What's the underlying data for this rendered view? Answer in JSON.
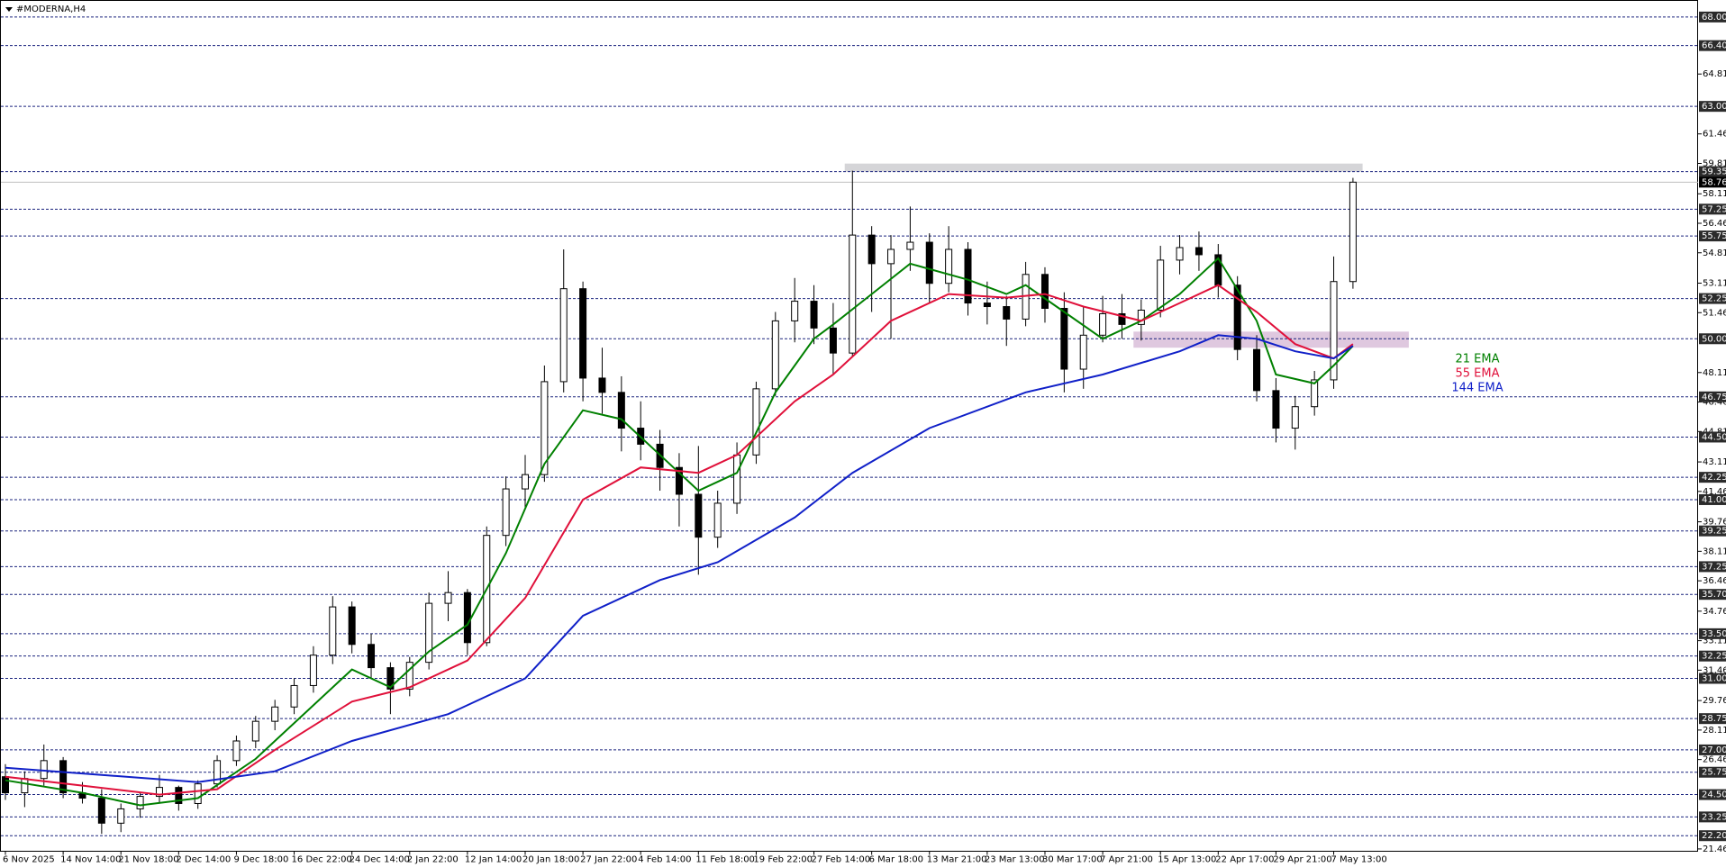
{
  "chart_data": {
    "type": "candlestick",
    "title": "#MODERNA,H4",
    "categories": [
      "6 Nov 2025",
      null,
      null,
      "14 Nov 14:00",
      null,
      null,
      "21 Nov 18:00",
      null,
      null,
      "2 Dec 14:00",
      null,
      null,
      "9 Dec 18:00",
      null,
      null,
      "16 Dec 22:00",
      null,
      null,
      "24 Dec 14:00",
      null,
      null,
      "2 Jan 22:00",
      null,
      null,
      "12 Jan 14:00",
      null,
      null,
      "20 Jan 18:00",
      null,
      null,
      "27 Jan 22:00",
      null,
      null,
      "4 Feb 14:00",
      null,
      null,
      "11 Feb 18:00",
      null,
      null,
      "19 Feb 22:00",
      null,
      null,
      "27 Feb 14:00",
      null,
      null,
      "6 Mar 18:00",
      null,
      null,
      "13 Mar 21:00",
      null,
      null,
      "23 Mar 13:00",
      null,
      null,
      "30 Mar 17:00",
      null,
      null,
      "7 Apr 21:00",
      null,
      null,
      "15 Apr 13:00",
      null,
      null,
      "22 Apr 17:00",
      null,
      null,
      "29 Apr 21:00",
      null,
      null,
      "7 May 13:00",
      null
    ],
    "open": [
      25.5,
      24.6,
      25.4,
      26.4,
      24.6,
      24.3,
      22.9,
      23.7,
      24.4,
      24.9,
      24.0,
      25.1,
      26.4,
      27.5,
      28.6,
      29.4,
      30.6,
      32.3,
      35.0,
      32.9,
      31.6,
      30.4,
      31.9,
      35.2,
      35.8,
      33.0,
      39.0,
      41.6,
      42.4,
      47.6,
      52.8,
      47.8,
      47.0,
      45.0,
      44.1,
      42.8,
      41.3,
      38.9,
      40.8,
      43.5,
      47.2,
      51.0,
      52.1,
      50.6,
      49.2,
      55.8,
      54.2,
      55.0,
      55.4,
      53.1,
      55.0,
      52.0,
      51.8,
      51.1,
      53.6,
      51.7,
      48.3,
      50.2,
      51.4,
      50.8,
      51.6,
      54.4,
      55.1,
      54.7,
      53.0,
      49.4,
      47.1,
      45.0,
      46.2,
      47.7,
      53.2
    ],
    "high": [
      26.2,
      25.8,
      27.3,
      26.6,
      25.2,
      24.8,
      24.0,
      24.6,
      25.6,
      25.0,
      25.3,
      26.7,
      27.8,
      28.9,
      29.8,
      31.0,
      32.8,
      35.6,
      35.3,
      33.5,
      31.9,
      32.2,
      35.8,
      37.0,
      36.0,
      39.5,
      42.3,
      43.5,
      48.5,
      55.0,
      53.2,
      49.5,
      47.9,
      46.5,
      44.9,
      43.6,
      44.0,
      41.5,
      44.2,
      47.6,
      51.5,
      53.4,
      53.0,
      52.0,
      59.4,
      56.3,
      55.8,
      57.4,
      55.9,
      56.3,
      55.4,
      53.2,
      52.4,
      54.3,
      54.0,
      52.6,
      51.8,
      52.4,
      52.5,
      52.2,
      55.2,
      55.8,
      56.0,
      55.3,
      53.5,
      50.2,
      47.8,
      46.8,
      48.2,
      54.6,
      59.0
    ],
    "low": [
      24.2,
      23.8,
      25.0,
      24.3,
      24.0,
      22.3,
      22.4,
      23.2,
      24.0,
      23.6,
      23.7,
      24.9,
      26.1,
      27.1,
      28.1,
      29.0,
      30.2,
      31.8,
      32.4,
      31.0,
      29.0,
      30.0,
      31.5,
      34.2,
      32.3,
      32.8,
      38.4,
      40.5,
      42.0,
      47.0,
      46.5,
      45.8,
      43.7,
      43.2,
      41.5,
      39.5,
      36.8,
      38.3,
      40.2,
      43.0,
      46.8,
      49.8,
      49.7,
      48.0,
      49.0,
      51.5,
      50.0,
      53.8,
      52.0,
      52.6,
      51.3,
      50.8,
      49.6,
      50.7,
      50.9,
      47.0,
      47.2,
      49.8,
      50.0,
      49.9,
      51.2,
      53.6,
      53.8,
      52.3,
      48.8,
      46.5,
      44.2,
      43.8,
      45.7,
      47.2,
      52.8
    ],
    "close": [
      24.6,
      25.4,
      26.4,
      24.6,
      24.3,
      22.9,
      23.7,
      24.4,
      24.9,
      24.0,
      25.1,
      26.4,
      27.5,
      28.6,
      29.4,
      30.6,
      32.3,
      35.0,
      32.9,
      31.6,
      30.4,
      31.9,
      35.2,
      35.8,
      33.0,
      39.0,
      41.6,
      42.4,
      47.6,
      52.8,
      47.8,
      47.0,
      45.0,
      44.1,
      42.8,
      41.3,
      38.9,
      40.8,
      43.5,
      47.2,
      51.0,
      52.1,
      50.6,
      49.2,
      55.8,
      54.2,
      55.0,
      55.4,
      53.1,
      55.0,
      52.0,
      51.8,
      51.1,
      53.6,
      51.7,
      48.3,
      50.2,
      51.4,
      50.8,
      51.6,
      54.4,
      55.1,
      54.7,
      53.0,
      49.4,
      47.1,
      45.0,
      46.2,
      47.7,
      53.2,
      58.76
    ],
    "series": [
      {
        "name": "21 EMA",
        "color": "#008000",
        "x": [
          0,
          4,
          7,
          10,
          13,
          15,
          18,
          20,
          22,
          24,
          26,
          28,
          30,
          32,
          34,
          36,
          38,
          40,
          42,
          43,
          45,
          47,
          50,
          52,
          53,
          55,
          57,
          59,
          61,
          63,
          65,
          66,
          68,
          69,
          70
        ],
        "values": [
          25.3,
          24.6,
          23.9,
          24.3,
          26.5,
          28.5,
          31.5,
          30.5,
          32.5,
          34,
          38,
          43,
          46,
          45.5,
          43.5,
          41.5,
          42.5,
          47,
          50,
          50.8,
          52.5,
          54.2,
          53.3,
          52.5,
          53,
          51.5,
          50,
          51,
          52.5,
          54.5,
          51,
          48,
          47.5,
          48.5,
          49.6
        ]
      },
      {
        "name": "55 EMA",
        "color": "#e0103a",
        "x": [
          0,
          4,
          8,
          11,
          14,
          18,
          21,
          24,
          27,
          30,
          33,
          36,
          38,
          41,
          43,
          46,
          49,
          52,
          54,
          56,
          59,
          61,
          63,
          65,
          67,
          69,
          70
        ],
        "values": [
          25.5,
          25,
          24.5,
          24.8,
          27,
          29.7,
          30.5,
          32,
          35.5,
          41,
          42.8,
          42.5,
          43.5,
          46.5,
          48,
          51,
          52.5,
          52.3,
          52.5,
          51.8,
          51,
          52,
          53,
          51.5,
          49.7,
          48.9,
          49.7
        ]
      },
      {
        "name": "144 EMA",
        "color": "#1020c8",
        "x": [
          0,
          5,
          10,
          14,
          18,
          23,
          27,
          30,
          34,
          37,
          41,
          44,
          48,
          53,
          57,
          61,
          63,
          65,
          67,
          69,
          70
        ],
        "values": [
          26,
          25.6,
          25.2,
          25.8,
          27.5,
          29,
          31,
          34.5,
          36.5,
          37.5,
          40,
          42.5,
          45,
          47,
          48,
          49.3,
          50.2,
          50,
          49.3,
          48.9,
          49.6
        ]
      }
    ],
    "zones": [
      {
        "y": [
          59.35,
          59.8
        ],
        "x": [
          43.6,
          70.5
        ],
        "color": "#d0d0d4"
      },
      {
        "y": [
          49.5,
          50.4
        ],
        "x": [
          58.6,
          72.9
        ],
        "color": "#dcc2dc"
      }
    ],
    "levels": [
      {
        "value": 68,
        "label": "68.00"
      },
      {
        "value": 66.4,
        "label": "66.40"
      },
      {
        "value": 63,
        "label": "63.00"
      },
      {
        "value": 59.35,
        "label": "59.35"
      },
      {
        "value": 57.25,
        "label": "57.25"
      },
      {
        "value": 55.75,
        "label": "55.75"
      },
      {
        "value": 52.25,
        "label": "52.25"
      },
      {
        "value": 50,
        "label": "50.00"
      },
      {
        "value": 46.75,
        "label": "46.75"
      },
      {
        "value": 44.5,
        "label": "44.50"
      },
      {
        "value": 42.25,
        "label": "42.25"
      },
      {
        "value": 41,
        "label": "41.00"
      },
      {
        "value": 39.25,
        "label": "39.25"
      },
      {
        "value": 37.25,
        "label": "37.25"
      },
      {
        "value": 35.7,
        "label": "35.70"
      },
      {
        "value": 33.5,
        "label": "33.50"
      },
      {
        "value": 32.25,
        "label": "32.25"
      },
      {
        "value": 31,
        "label": "31.00"
      },
      {
        "value": 28.75,
        "label": "28.75"
      },
      {
        "value": 27,
        "label": "27.00"
      },
      {
        "value": 25.75,
        "label": "25.75"
      },
      {
        "value": 24.5,
        "label": "24.50"
      },
      {
        "value": 23.25,
        "label": "23.25"
      },
      {
        "value": 22.2,
        "label": "22.20"
      }
    ],
    "last_price": {
      "value": 58.76,
      "label": "58.76"
    },
    "ylim": [
      21.33,
      68.8
    ],
    "yticks": [
      64.81,
      61.46,
      59.81,
      58.11,
      56.46,
      54.81,
      53.11,
      51.46,
      48.11,
      46.46,
      44.81,
      43.11,
      41.46,
      39.76,
      38.11,
      36.46,
      34.76,
      33.11,
      31.46,
      29.76,
      28.11,
      26.46,
      21.46
    ],
    "grid": false
  }
}
